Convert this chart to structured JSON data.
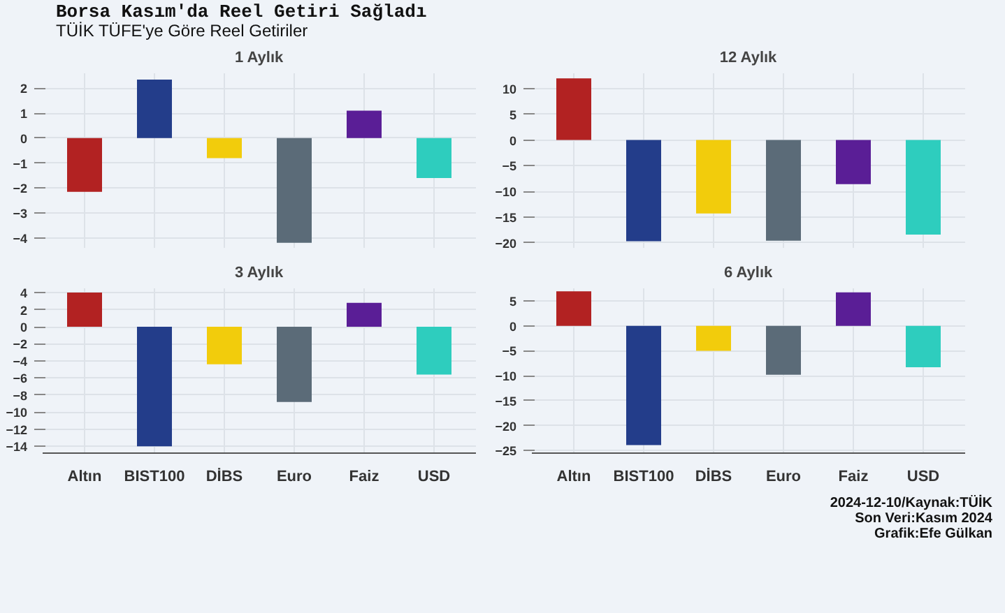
{
  "chart_data": [
    {
      "type": "other",
      "title": "Borsa Kasım'da Reel Getiri Sağladı",
      "subtitle": "TÜİK TÜFE'ye Göre Reel Getiriler"
    },
    {
      "type": "bar",
      "title": "1 Aylık",
      "categories": [
        "Altın",
        "BIST100",
        "DİBS",
        "Euro",
        "Faiz",
        "USD"
      ],
      "values": [
        -2.15,
        2.35,
        -0.8,
        -4.2,
        1.1,
        -1.6
      ],
      "colors": [
        "#b22222",
        "#233d8a",
        "#f2cc0c",
        "#5b6b78",
        "#5a1e96",
        "#2ecdbe"
      ],
      "ylim": [
        -4.4,
        2.6
      ],
      "yticks": [
        -4,
        -3,
        -2,
        -1,
        0,
        1,
        2
      ],
      "grid": true,
      "tick_labels": "y"
    },
    {
      "type": "bar",
      "title": "12 Aylık",
      "categories": [
        "Altın",
        "BIST100",
        "DİBS",
        "Euro",
        "Faiz",
        "USD"
      ],
      "values": [
        12.0,
        -19.7,
        -14.3,
        -19.6,
        -8.6,
        -18.4
      ],
      "colors": [
        "#b22222",
        "#233d8a",
        "#f2cc0c",
        "#5b6b78",
        "#5a1e96",
        "#2ecdbe"
      ],
      "ylim": [
        -21,
        13
      ],
      "yticks": [
        -20,
        -15,
        -10,
        -5,
        0,
        5,
        10
      ],
      "grid": true,
      "tick_labels": "y"
    },
    {
      "type": "bar",
      "title": "3 Aylık",
      "categories": [
        "Altın",
        "BIST100",
        "DİBS",
        "Euro",
        "Faiz",
        "USD"
      ],
      "values": [
        4.0,
        -14.0,
        -4.4,
        -8.8,
        2.8,
        -5.6
      ],
      "colors": [
        "#b22222",
        "#233d8a",
        "#f2cc0c",
        "#5b6b78",
        "#5a1e96",
        "#2ecdbe"
      ],
      "ylim": [
        -14.8,
        4.5
      ],
      "yticks": [
        -14,
        -12,
        -10,
        -8,
        -6,
        -4,
        -2,
        0,
        2,
        4
      ],
      "grid": true
    },
    {
      "type": "bar",
      "title": "6 Aylık",
      "categories": [
        "Altın",
        "BIST100",
        "DİBS",
        "Euro",
        "Faiz",
        "USD"
      ],
      "values": [
        6.9,
        -23.9,
        -5.0,
        -9.8,
        6.7,
        -8.3
      ],
      "colors": [
        "#b22222",
        "#233d8a",
        "#f2cc0c",
        "#5b6b78",
        "#5a1e96",
        "#2ecdbe"
      ],
      "ylim": [
        -25.5,
        7.5
      ],
      "yticks": [
        -25,
        -20,
        -15,
        -10,
        -5,
        0,
        5
      ],
      "grid": true
    },
    {
      "type": "other",
      "annotations": [
        "2024-12-10/Kaynak:TÜİK",
        "Son Veri:Kasım 2024",
        "Grafik:Efe Gülkan"
      ]
    }
  ]
}
